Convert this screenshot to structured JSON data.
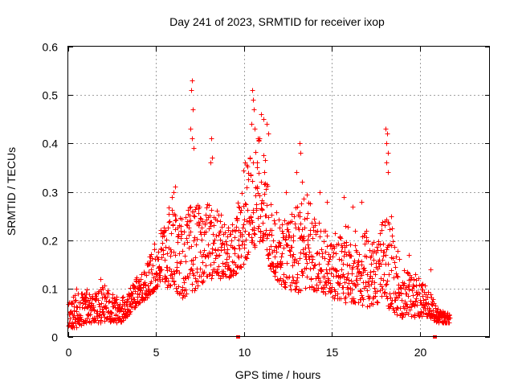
{
  "chart_data": {
    "type": "scatter",
    "title": "Day 241 of 2023, SRMTID for receiver ixop",
    "xlabel": "GPS time / hours",
    "ylabel": "SRMTID / TECUs",
    "xlim": [
      0,
      24
    ],
    "ylim": [
      0,
      0.6
    ],
    "xticks": [
      0,
      5,
      10,
      15,
      20
    ],
    "xtick_labels": [
      "0",
      "5",
      "10",
      "15",
      "20"
    ],
    "yticks": [
      0,
      0.1,
      0.2,
      0.3,
      0.4,
      0.5,
      0.6
    ],
    "ytick_labels": [
      "0",
      "0.1",
      "0.2",
      "0.3",
      "0.4",
      "0.5",
      "0.6"
    ],
    "grid": true,
    "marker": "plus",
    "color": "#ff0000",
    "series": [
      {
        "name": "SRMTID",
        "envelope": {
          "x": [
            0,
            0.5,
            1,
            1.5,
            2,
            2.5,
            3,
            3.5,
            4,
            4.5,
            5,
            5.5,
            6,
            6.5,
            7,
            7.5,
            8,
            8.5,
            9,
            9.5,
            10,
            10.5,
            11,
            11.5,
            12,
            12.5,
            13,
            13.5,
            14,
            14.5,
            15,
            15.5,
            16,
            16.5,
            17,
            17.5,
            18,
            18.5,
            19,
            19.5,
            20,
            20.5,
            21,
            21.5
          ],
          "y_low": [
            0.02,
            0.02,
            0.03,
            0.03,
            0.03,
            0.03,
            0.03,
            0.05,
            0.07,
            0.08,
            0.1,
            0.1,
            0.1,
            0.08,
            0.09,
            0.11,
            0.12,
            0.12,
            0.12,
            0.13,
            0.15,
            0.18,
            0.2,
            0.14,
            0.11,
            0.1,
            0.09,
            0.1,
            0.09,
            0.09,
            0.08,
            0.07,
            0.07,
            0.07,
            0.06,
            0.07,
            0.07,
            0.05,
            0.04,
            0.04,
            0.04,
            0.04,
            0.03,
            0.03
          ],
          "y_high": [
            0.08,
            0.09,
            0.1,
            0.09,
            0.11,
            0.09,
            0.08,
            0.1,
            0.13,
            0.16,
            0.2,
            0.26,
            0.28,
            0.24,
            0.28,
            0.27,
            0.28,
            0.26,
            0.25,
            0.24,
            0.36,
            0.4,
            0.42,
            0.28,
            0.25,
            0.24,
            0.28,
            0.32,
            0.25,
            0.23,
            0.22,
            0.22,
            0.24,
            0.22,
            0.22,
            0.2,
            0.26,
            0.22,
            0.14,
            0.14,
            0.12,
            0.1,
            0.06,
            0.05
          ]
        },
        "peaks": [
          {
            "x": 7.05,
            "y": 0.53
          },
          {
            "x": 7.0,
            "y": 0.51
          },
          {
            "x": 7.1,
            "y": 0.47
          },
          {
            "x": 6.95,
            "y": 0.43
          },
          {
            "x": 7.05,
            "y": 0.41
          },
          {
            "x": 7.15,
            "y": 0.39
          },
          {
            "x": 8.15,
            "y": 0.41
          },
          {
            "x": 8.2,
            "y": 0.37
          },
          {
            "x": 8.1,
            "y": 0.36
          },
          {
            "x": 10.45,
            "y": 0.51
          },
          {
            "x": 10.5,
            "y": 0.49
          },
          {
            "x": 10.55,
            "y": 0.47
          },
          {
            "x": 10.4,
            "y": 0.44
          },
          {
            "x": 10.6,
            "y": 0.43
          },
          {
            "x": 10.95,
            "y": 0.46
          },
          {
            "x": 11.1,
            "y": 0.45
          },
          {
            "x": 11.3,
            "y": 0.44
          },
          {
            "x": 11.4,
            "y": 0.42
          },
          {
            "x": 10.8,
            "y": 0.41
          },
          {
            "x": 13.15,
            "y": 0.4
          },
          {
            "x": 13.2,
            "y": 0.38
          },
          {
            "x": 18.05,
            "y": 0.43
          },
          {
            "x": 18.15,
            "y": 0.42
          },
          {
            "x": 18.1,
            "y": 0.4
          },
          {
            "x": 18.2,
            "y": 0.38
          },
          {
            "x": 18.1,
            "y": 0.36
          },
          {
            "x": 18.2,
            "y": 0.34
          },
          {
            "x": 6.1,
            "y": 0.31
          },
          {
            "x": 6.0,
            "y": 0.3
          },
          {
            "x": 5.9,
            "y": 0.29
          },
          {
            "x": 9.7,
            "y": 0.27
          },
          {
            "x": 12.4,
            "y": 0.3
          },
          {
            "x": 13.0,
            "y": 0.34
          },
          {
            "x": 13.3,
            "y": 0.32
          },
          {
            "x": 14.3,
            "y": 0.3
          },
          {
            "x": 14.7,
            "y": 0.28
          },
          {
            "x": 15.7,
            "y": 0.29
          },
          {
            "x": 16.2,
            "y": 0.27
          },
          {
            "x": 16.7,
            "y": 0.28
          },
          {
            "x": 18.4,
            "y": 0.25
          },
          {
            "x": 19.4,
            "y": 0.17
          },
          {
            "x": 20.6,
            "y": 0.14
          },
          {
            "x": 1.85,
            "y": 0.12
          },
          {
            "x": 0.45,
            "y": 0.1
          }
        ]
      }
    ],
    "gap_markers_x": [
      9.65,
      20.85
    ]
  }
}
